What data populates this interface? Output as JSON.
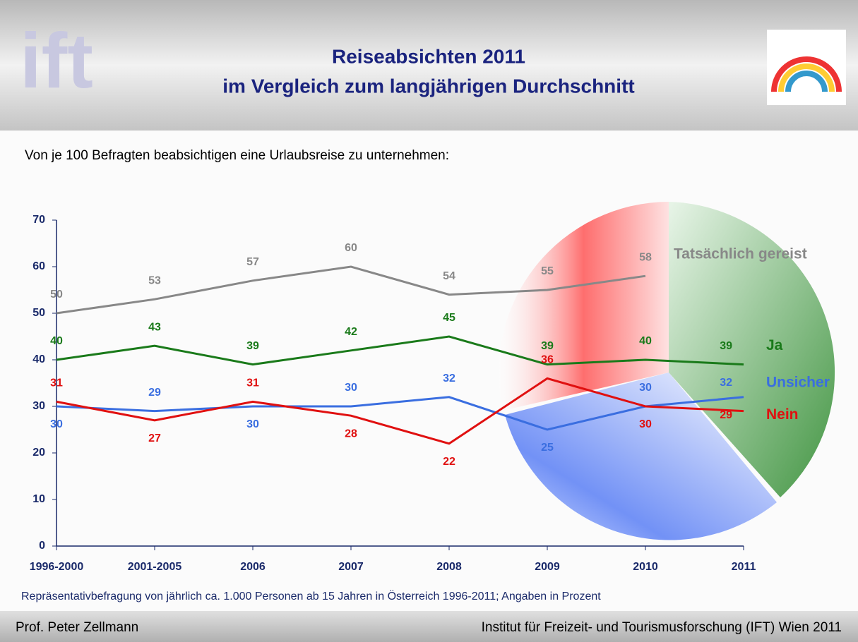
{
  "header": {
    "title": [
      "Reiseabsichten 2011",
      "im Vergleich zum langjährigen Durchschnitt"
    ],
    "logo_text": "ift"
  },
  "chart_data": {
    "type": "line",
    "subtitle": "Von je 100 Befragten beabsichtigen eine Urlaubsreise zu unternehmen:",
    "categories": [
      "1996-2000",
      "2001-2005",
      "2006",
      "2007",
      "2008",
      "2009",
      "2010",
      "2011"
    ],
    "series": [
      {
        "name": "Tatsächlich gereist",
        "color": "#888888",
        "values": [
          50,
          53,
          57,
          60,
          54,
          55,
          58,
          null
        ]
      },
      {
        "name": "Ja",
        "color": "#1a7a1a",
        "values": [
          40,
          43,
          39,
          42,
          45,
          39,
          40,
          39
        ]
      },
      {
        "name": "Unsicher",
        "color": "#3a6ee0",
        "values": [
          30,
          29,
          30,
          30,
          32,
          25,
          30,
          32
        ]
      },
      {
        "name": "Nein",
        "color": "#e01010",
        "values": [
          31,
          27,
          31,
          28,
          22,
          36,
          30,
          29
        ]
      }
    ],
    "ylim": [
      0,
      70
    ],
    "yticks": [
      0,
      10,
      20,
      30,
      40,
      50,
      60,
      70
    ],
    "note": "Repräsentativbefragung von jährlich ca. 1.000 Personen ab 15 Jahren in Österreich 1996-2011; Angaben in Prozent"
  },
  "footer": {
    "left": "Prof. Peter Zellmann",
    "right": "Institut für Freizeit- und Tourismusforschung (IFT) Wien  2011"
  }
}
